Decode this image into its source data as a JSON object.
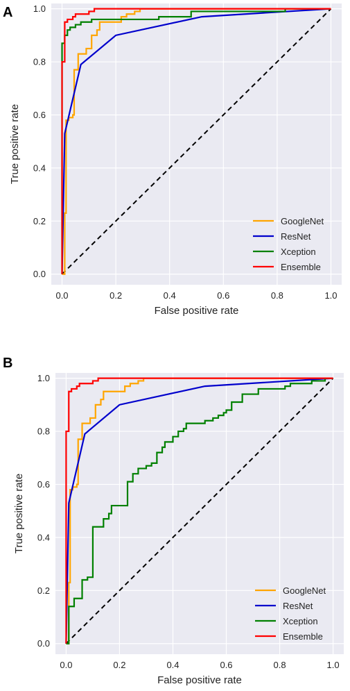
{
  "panels": [
    {
      "panel_label": "A",
      "chart_data": {
        "type": "line",
        "title": "",
        "xlabel": "False positive rate",
        "ylabel": "True positive rate",
        "xlim": [
          -0.04,
          1.04
        ],
        "ylim": [
          -0.04,
          1.02
        ],
        "xticks": [
          "0.0",
          "0.2",
          "0.4",
          "0.6",
          "0.8",
          "1.0"
        ],
        "yticks": [
          "0.0",
          "0.2",
          "0.4",
          "0.6",
          "0.8",
          "1.0"
        ],
        "grid": true,
        "background": "#eaeaf2",
        "legend_position": "bottom-right",
        "diagonal_style": "dashed",
        "series": [
          {
            "name": "GoogleNet",
            "color": "#ffa500",
            "points": [
              [
                0,
                0
              ],
              [
                0.01,
                0
              ],
              [
                0.01,
                0.23
              ],
              [
                0.015,
                0.23
              ],
              [
                0.015,
                0.58
              ],
              [
                0.025,
                0.58
              ],
              [
                0.025,
                0.59
              ],
              [
                0.04,
                0.59
              ],
              [
                0.04,
                0.6
              ],
              [
                0.045,
                0.6
              ],
              [
                0.045,
                0.77
              ],
              [
                0.06,
                0.77
              ],
              [
                0.06,
                0.83
              ],
              [
                0.09,
                0.83
              ],
              [
                0.09,
                0.85
              ],
              [
                0.11,
                0.85
              ],
              [
                0.11,
                0.9
              ],
              [
                0.13,
                0.9
              ],
              [
                0.13,
                0.92
              ],
              [
                0.14,
                0.92
              ],
              [
                0.14,
                0.95
              ],
              [
                0.22,
                0.95
              ],
              [
                0.22,
                0.97
              ],
              [
                0.24,
                0.97
              ],
              [
                0.24,
                0.98
              ],
              [
                0.27,
                0.98
              ],
              [
                0.27,
                0.99
              ],
              [
                0.29,
                0.99
              ],
              [
                0.29,
                1.0
              ],
              [
                1.0,
                1.0
              ]
            ]
          },
          {
            "name": "ResNet",
            "color": "#0000cc",
            "points": [
              [
                0,
                0
              ],
              [
                0.01,
                0.53
              ],
              [
                0.07,
                0.79
              ],
              [
                0.2,
                0.9
              ],
              [
                0.52,
                0.97
              ],
              [
                1.0,
                1.0
              ]
            ]
          },
          {
            "name": "Xception",
            "color": "#008000",
            "points": [
              [
                0,
                0
              ],
              [
                0,
                0.87
              ],
              [
                0.01,
                0.87
              ],
              [
                0.01,
                0.9
              ],
              [
                0.02,
                0.9
              ],
              [
                0.02,
                0.92
              ],
              [
                0.03,
                0.92
              ],
              [
                0.03,
                0.93
              ],
              [
                0.05,
                0.93
              ],
              [
                0.05,
                0.94
              ],
              [
                0.07,
                0.94
              ],
              [
                0.07,
                0.95
              ],
              [
                0.11,
                0.95
              ],
              [
                0.11,
                0.96
              ],
              [
                0.36,
                0.96
              ],
              [
                0.36,
                0.97
              ],
              [
                0.48,
                0.97
              ],
              [
                0.48,
                0.99
              ],
              [
                0.83,
                0.99
              ],
              [
                0.83,
                1.0
              ],
              [
                1.0,
                1.0
              ]
            ]
          },
          {
            "name": "Ensemble",
            "color": "#ff0000",
            "points": [
              [
                0,
                0
              ],
              [
                0,
                0.8
              ],
              [
                0.01,
                0.8
              ],
              [
                0.01,
                0.95
              ],
              [
                0.02,
                0.95
              ],
              [
                0.02,
                0.96
              ],
              [
                0.04,
                0.96
              ],
              [
                0.04,
                0.97
              ],
              [
                0.05,
                0.97
              ],
              [
                0.05,
                0.98
              ],
              [
                0.1,
                0.98
              ],
              [
                0.1,
                0.99
              ],
              [
                0.12,
                0.99
              ],
              [
                0.12,
                1.0
              ],
              [
                1.0,
                1.0
              ]
            ]
          }
        ]
      }
    },
    {
      "panel_label": "B",
      "chart_data": {
        "type": "line",
        "title": "",
        "xlabel": "False positive rate",
        "ylabel": "True positive rate",
        "xlim": [
          -0.04,
          1.04
        ],
        "ylim": [
          -0.04,
          1.02
        ],
        "xticks": [
          "0.0",
          "0.2",
          "0.4",
          "0.6",
          "0.8",
          "1.0"
        ],
        "yticks": [
          "0.0",
          "0.2",
          "0.4",
          "0.6",
          "0.8",
          "1.0"
        ],
        "grid": true,
        "background": "#eaeaf2",
        "legend_position": "bottom-right",
        "diagonal_style": "dashed",
        "series": [
          {
            "name": "GoogleNet",
            "color": "#ffa500",
            "points": [
              [
                0,
                0
              ],
              [
                0.01,
                0
              ],
              [
                0.01,
                0.23
              ],
              [
                0.015,
                0.23
              ],
              [
                0.015,
                0.58
              ],
              [
                0.025,
                0.58
              ],
              [
                0.025,
                0.59
              ],
              [
                0.04,
                0.59
              ],
              [
                0.04,
                0.6
              ],
              [
                0.045,
                0.6
              ],
              [
                0.045,
                0.77
              ],
              [
                0.06,
                0.77
              ],
              [
                0.06,
                0.83
              ],
              [
                0.09,
                0.83
              ],
              [
                0.09,
                0.85
              ],
              [
                0.11,
                0.85
              ],
              [
                0.11,
                0.9
              ],
              [
                0.13,
                0.9
              ],
              [
                0.13,
                0.92
              ],
              [
                0.14,
                0.92
              ],
              [
                0.14,
                0.95
              ],
              [
                0.22,
                0.95
              ],
              [
                0.22,
                0.97
              ],
              [
                0.24,
                0.97
              ],
              [
                0.24,
                0.98
              ],
              [
                0.27,
                0.98
              ],
              [
                0.27,
                0.99
              ],
              [
                0.29,
                0.99
              ],
              [
                0.29,
                1.0
              ],
              [
                1.0,
                1.0
              ]
            ]
          },
          {
            "name": "ResNet",
            "color": "#0000cc",
            "points": [
              [
                0,
                0
              ],
              [
                0.01,
                0.53
              ],
              [
                0.07,
                0.79
              ],
              [
                0.2,
                0.9
              ],
              [
                0.52,
                0.97
              ],
              [
                1.0,
                1.0
              ]
            ]
          },
          {
            "name": "Xception",
            "color": "#008000",
            "points": [
              [
                0,
                0
              ],
              [
                0.01,
                0
              ],
              [
                0.01,
                0.14
              ],
              [
                0.03,
                0.14
              ],
              [
                0.03,
                0.17
              ],
              [
                0.06,
                0.17
              ],
              [
                0.06,
                0.24
              ],
              [
                0.08,
                0.24
              ],
              [
                0.08,
                0.25
              ],
              [
                0.1,
                0.25
              ],
              [
                0.1,
                0.44
              ],
              [
                0.14,
                0.44
              ],
              [
                0.14,
                0.47
              ],
              [
                0.16,
                0.47
              ],
              [
                0.16,
                0.49
              ],
              [
                0.17,
                0.49
              ],
              [
                0.17,
                0.52
              ],
              [
                0.23,
                0.52
              ],
              [
                0.23,
                0.61
              ],
              [
                0.25,
                0.61
              ],
              [
                0.25,
                0.64
              ],
              [
                0.27,
                0.64
              ],
              [
                0.27,
                0.66
              ],
              [
                0.3,
                0.66
              ],
              [
                0.3,
                0.67
              ],
              [
                0.32,
                0.67
              ],
              [
                0.32,
                0.68
              ],
              [
                0.34,
                0.68
              ],
              [
                0.34,
                0.72
              ],
              [
                0.36,
                0.72
              ],
              [
                0.36,
                0.74
              ],
              [
                0.37,
                0.74
              ],
              [
                0.37,
                0.76
              ],
              [
                0.4,
                0.76
              ],
              [
                0.4,
                0.78
              ],
              [
                0.42,
                0.78
              ],
              [
                0.42,
                0.8
              ],
              [
                0.44,
                0.8
              ],
              [
                0.44,
                0.81
              ],
              [
                0.45,
                0.81
              ],
              [
                0.45,
                0.83
              ],
              [
                0.52,
                0.83
              ],
              [
                0.52,
                0.84
              ],
              [
                0.55,
                0.84
              ],
              [
                0.55,
                0.85
              ],
              [
                0.57,
                0.85
              ],
              [
                0.57,
                0.86
              ],
              [
                0.59,
                0.86
              ],
              [
                0.59,
                0.87
              ],
              [
                0.6,
                0.87
              ],
              [
                0.6,
                0.88
              ],
              [
                0.62,
                0.88
              ],
              [
                0.62,
                0.91
              ],
              [
                0.66,
                0.91
              ],
              [
                0.66,
                0.94
              ],
              [
                0.72,
                0.94
              ],
              [
                0.72,
                0.96
              ],
              [
                0.82,
                0.96
              ],
              [
                0.82,
                0.97
              ],
              [
                0.84,
                0.97
              ],
              [
                0.84,
                0.98
              ],
              [
                0.92,
                0.98
              ],
              [
                0.92,
                0.99
              ],
              [
                0.97,
                0.99
              ],
              [
                0.97,
                1.0
              ],
              [
                1.0,
                1.0
              ]
            ]
          },
          {
            "name": "Ensemble",
            "color": "#ff0000",
            "points": [
              [
                0,
                0
              ],
              [
                0,
                0.8
              ],
              [
                0.01,
                0.8
              ],
              [
                0.01,
                0.95
              ],
              [
                0.02,
                0.95
              ],
              [
                0.02,
                0.96
              ],
              [
                0.04,
                0.96
              ],
              [
                0.04,
                0.97
              ],
              [
                0.05,
                0.97
              ],
              [
                0.05,
                0.98
              ],
              [
                0.1,
                0.98
              ],
              [
                0.1,
                0.99
              ],
              [
                0.12,
                0.99
              ],
              [
                0.12,
                1.0
              ],
              [
                1.0,
                1.0
              ]
            ]
          }
        ]
      }
    }
  ]
}
